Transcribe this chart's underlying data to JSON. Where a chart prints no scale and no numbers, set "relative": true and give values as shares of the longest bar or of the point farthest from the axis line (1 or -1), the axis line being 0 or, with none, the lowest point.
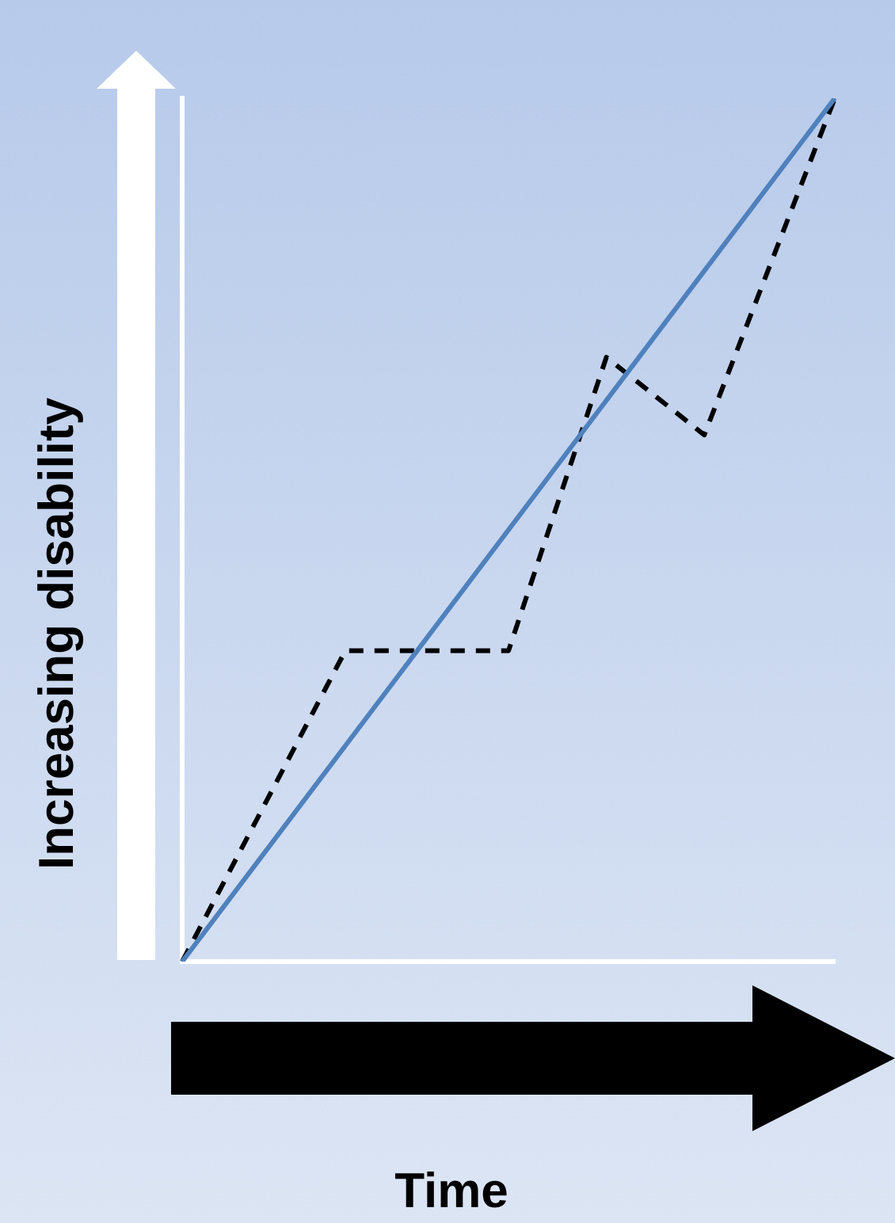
{
  "chart_data": {
    "type": "line",
    "relative": true,
    "xlabel": "Time",
    "ylabel": "Increasing disability",
    "marker": "none",
    "categories": [
      null,
      null,
      null,
      null,
      null,
      null,
      null,
      null,
      null,
      null,
      null,
      null,
      null,
      null,
      null,
      null,
      null,
      null,
      null,
      null,
      null
    ],
    "series": [
      {
        "color": "#4f81bd",
        "line_style": "solid",
        "values": [
          0,
          null,
          null,
          null,
          null,
          null,
          null,
          null,
          null,
          null,
          null,
          null,
          null,
          null,
          null,
          null,
          null,
          null,
          null,
          null,
          1
        ]
      },
      {
        "color": "#000000",
        "line_style": "dashed",
        "values": [
          0,
          null,
          null,
          null,
          null,
          0.36,
          null,
          null,
          null,
          null,
          0.36,
          null,
          null,
          0.7,
          null,
          null,
          0.61,
          null,
          null,
          null,
          1
        ]
      }
    ]
  }
}
